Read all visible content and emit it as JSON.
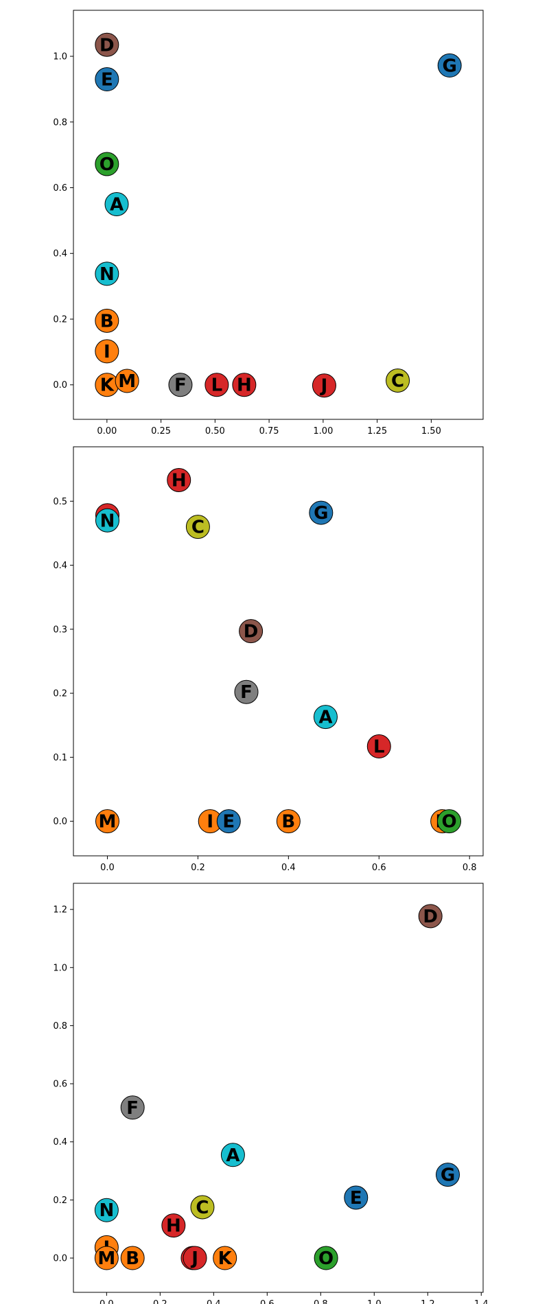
{
  "chart_data": [
    {
      "type": "scatter",
      "xlim": [
        -0.155,
        1.74
      ],
      "ylim": [
        -0.105,
        1.14
      ],
      "xticks": [
        "0.00",
        "0.25",
        "0.50",
        "0.75",
        "1.00",
        "1.25",
        "1.50"
      ],
      "xtick_values": [
        0,
        0.25,
        0.5,
        0.75,
        1.0,
        1.25,
        1.5
      ],
      "yticks": [
        "0.0",
        "0.2",
        "0.4",
        "0.6",
        "0.8",
        "1.0"
      ],
      "ytick_values": [
        0,
        0.2,
        0.4,
        0.6,
        0.8,
        1.0
      ],
      "grid": false,
      "points": [
        {
          "label": "D",
          "x": 0.0,
          "y": 1.035,
          "color": "#8c564b"
        },
        {
          "label": "E",
          "x": 0.0,
          "y": 0.93,
          "color": "#1f77b4"
        },
        {
          "label": "G",
          "x": 1.585,
          "y": 0.972,
          "color": "#1f77b4"
        },
        {
          "label": "O",
          "x": 0.0,
          "y": 0.672,
          "color": "#2ca02c"
        },
        {
          "label": "A",
          "x": 0.045,
          "y": 0.55,
          "color": "#17becf"
        },
        {
          "label": "N",
          "x": 0.0,
          "y": 0.338,
          "color": "#17becf"
        },
        {
          "label": "B",
          "x": 0.0,
          "y": 0.195,
          "color": "#ff7f0e"
        },
        {
          "label": "I",
          "x": 0.0,
          "y": 0.102,
          "color": "#ff7f0e"
        },
        {
          "label": "K",
          "x": 0.0,
          "y": 0.0,
          "color": "#ff7f0e"
        },
        {
          "label": "M",
          "x": 0.093,
          "y": 0.012,
          "color": "#ff7f0e"
        },
        {
          "label": "F",
          "x": 0.34,
          "y": 0.0,
          "color": "#7f7f7f"
        },
        {
          "label": "L",
          "x": 0.508,
          "y": 0.0,
          "color": "#d62728"
        },
        {
          "label": "H",
          "x": 0.635,
          "y": 0.0,
          "color": "#d62728"
        },
        {
          "label": "J",
          "x": 1.005,
          "y": -0.002,
          "color": "#d62728"
        },
        {
          "label": "C",
          "x": 1.345,
          "y": 0.013,
          "color": "#bcbd22"
        }
      ]
    },
    {
      "type": "scatter",
      "xlim": [
        -0.075,
        0.83
      ],
      "ylim": [
        -0.054,
        0.585
      ],
      "xticks": [
        "0.0",
        "0.2",
        "0.4",
        "0.6",
        "0.8"
      ],
      "xtick_values": [
        0,
        0.2,
        0.4,
        0.6,
        0.8
      ],
      "yticks": [
        "0.0",
        "0.1",
        "0.2",
        "0.3",
        "0.4",
        "0.5"
      ],
      "ytick_values": [
        0,
        0.1,
        0.2,
        0.3,
        0.4,
        0.5
      ],
      "grid": false,
      "points": [
        {
          "label": "H",
          "x": 0.158,
          "y": 0.533,
          "color": "#d62728"
        },
        {
          "label": "J",
          "x": 0.0,
          "y": 0.478,
          "color": "#d62728"
        },
        {
          "label": "N",
          "x": 0.0,
          "y": 0.47,
          "color": "#17becf"
        },
        {
          "label": "G",
          "x": 0.472,
          "y": 0.482,
          "color": "#1f77b4"
        },
        {
          "label": "C",
          "x": 0.2,
          "y": 0.46,
          "color": "#bcbd22"
        },
        {
          "label": "D",
          "x": 0.317,
          "y": 0.297,
          "color": "#8c564b"
        },
        {
          "label": "F",
          "x": 0.307,
          "y": 0.202,
          "color": "#7f7f7f"
        },
        {
          "label": "A",
          "x": 0.482,
          "y": 0.163,
          "color": "#17becf"
        },
        {
          "label": "L",
          "x": 0.6,
          "y": 0.117,
          "color": "#d62728"
        },
        {
          "label": "M",
          "x": 0.0,
          "y": 0.0,
          "color": "#ff7f0e"
        },
        {
          "label": "I",
          "x": 0.227,
          "y": 0.0,
          "color": "#ff7f0e"
        },
        {
          "label": "E",
          "x": 0.268,
          "y": 0.0,
          "color": "#1f77b4"
        },
        {
          "label": "B",
          "x": 0.4,
          "y": 0.0,
          "color": "#ff7f0e"
        },
        {
          "label": "K",
          "x": 0.74,
          "y": 0.0,
          "color": "#ff7f0e"
        },
        {
          "label": "O",
          "x": 0.755,
          "y": 0.0,
          "color": "#2ca02c"
        }
      ]
    },
    {
      "type": "scatter",
      "xlim": [
        -0.124,
        1.407
      ],
      "ylim": [
        -0.118,
        1.29
      ],
      "xticks": [
        "0.0",
        "0.2",
        "0.4",
        "0.6",
        "0.8",
        "1.0",
        "1.2",
        "1.4"
      ],
      "xtick_values": [
        0,
        0.2,
        0.4,
        0.6,
        0.8,
        1.0,
        1.2,
        1.4
      ],
      "yticks": [
        "0.0",
        "0.2",
        "0.4",
        "0.6",
        "0.8",
        "1.0",
        "1.2"
      ],
      "ytick_values": [
        0,
        0.2,
        0.4,
        0.6,
        0.8,
        1.0,
        1.2
      ],
      "grid": false,
      "points": [
        {
          "label": "D",
          "x": 1.21,
          "y": 1.177,
          "color": "#8c564b"
        },
        {
          "label": "F",
          "x": 0.097,
          "y": 0.518,
          "color": "#7f7f7f"
        },
        {
          "label": "A",
          "x": 0.472,
          "y": 0.355,
          "color": "#17becf"
        },
        {
          "label": "G",
          "x": 1.275,
          "y": 0.287,
          "color": "#1f77b4"
        },
        {
          "label": "E",
          "x": 0.932,
          "y": 0.208,
          "color": "#1f77b4"
        },
        {
          "label": "C",
          "x": 0.358,
          "y": 0.175,
          "color": "#bcbd22"
        },
        {
          "label": "N",
          "x": 0.0,
          "y": 0.165,
          "color": "#17becf"
        },
        {
          "label": "H",
          "x": 0.25,
          "y": 0.112,
          "color": "#d62728"
        },
        {
          "label": "I",
          "x": 0.0,
          "y": 0.037,
          "color": "#ff7f0e"
        },
        {
          "label": "M",
          "x": 0.0,
          "y": 0.0,
          "color": "#ff7f0e"
        },
        {
          "label": "B",
          "x": 0.097,
          "y": 0.0,
          "color": "#ff7f0e"
        },
        {
          "label": "L",
          "x": 0.322,
          "y": 0.0,
          "color": "#d62728"
        },
        {
          "label": "J",
          "x": 0.33,
          "y": 0.0,
          "color": "#d62728"
        },
        {
          "label": "K",
          "x": 0.442,
          "y": 0.0,
          "color": "#ff7f0e"
        },
        {
          "label": "O",
          "x": 0.82,
          "y": 0.0,
          "color": "#2ca02c"
        }
      ]
    }
  ]
}
